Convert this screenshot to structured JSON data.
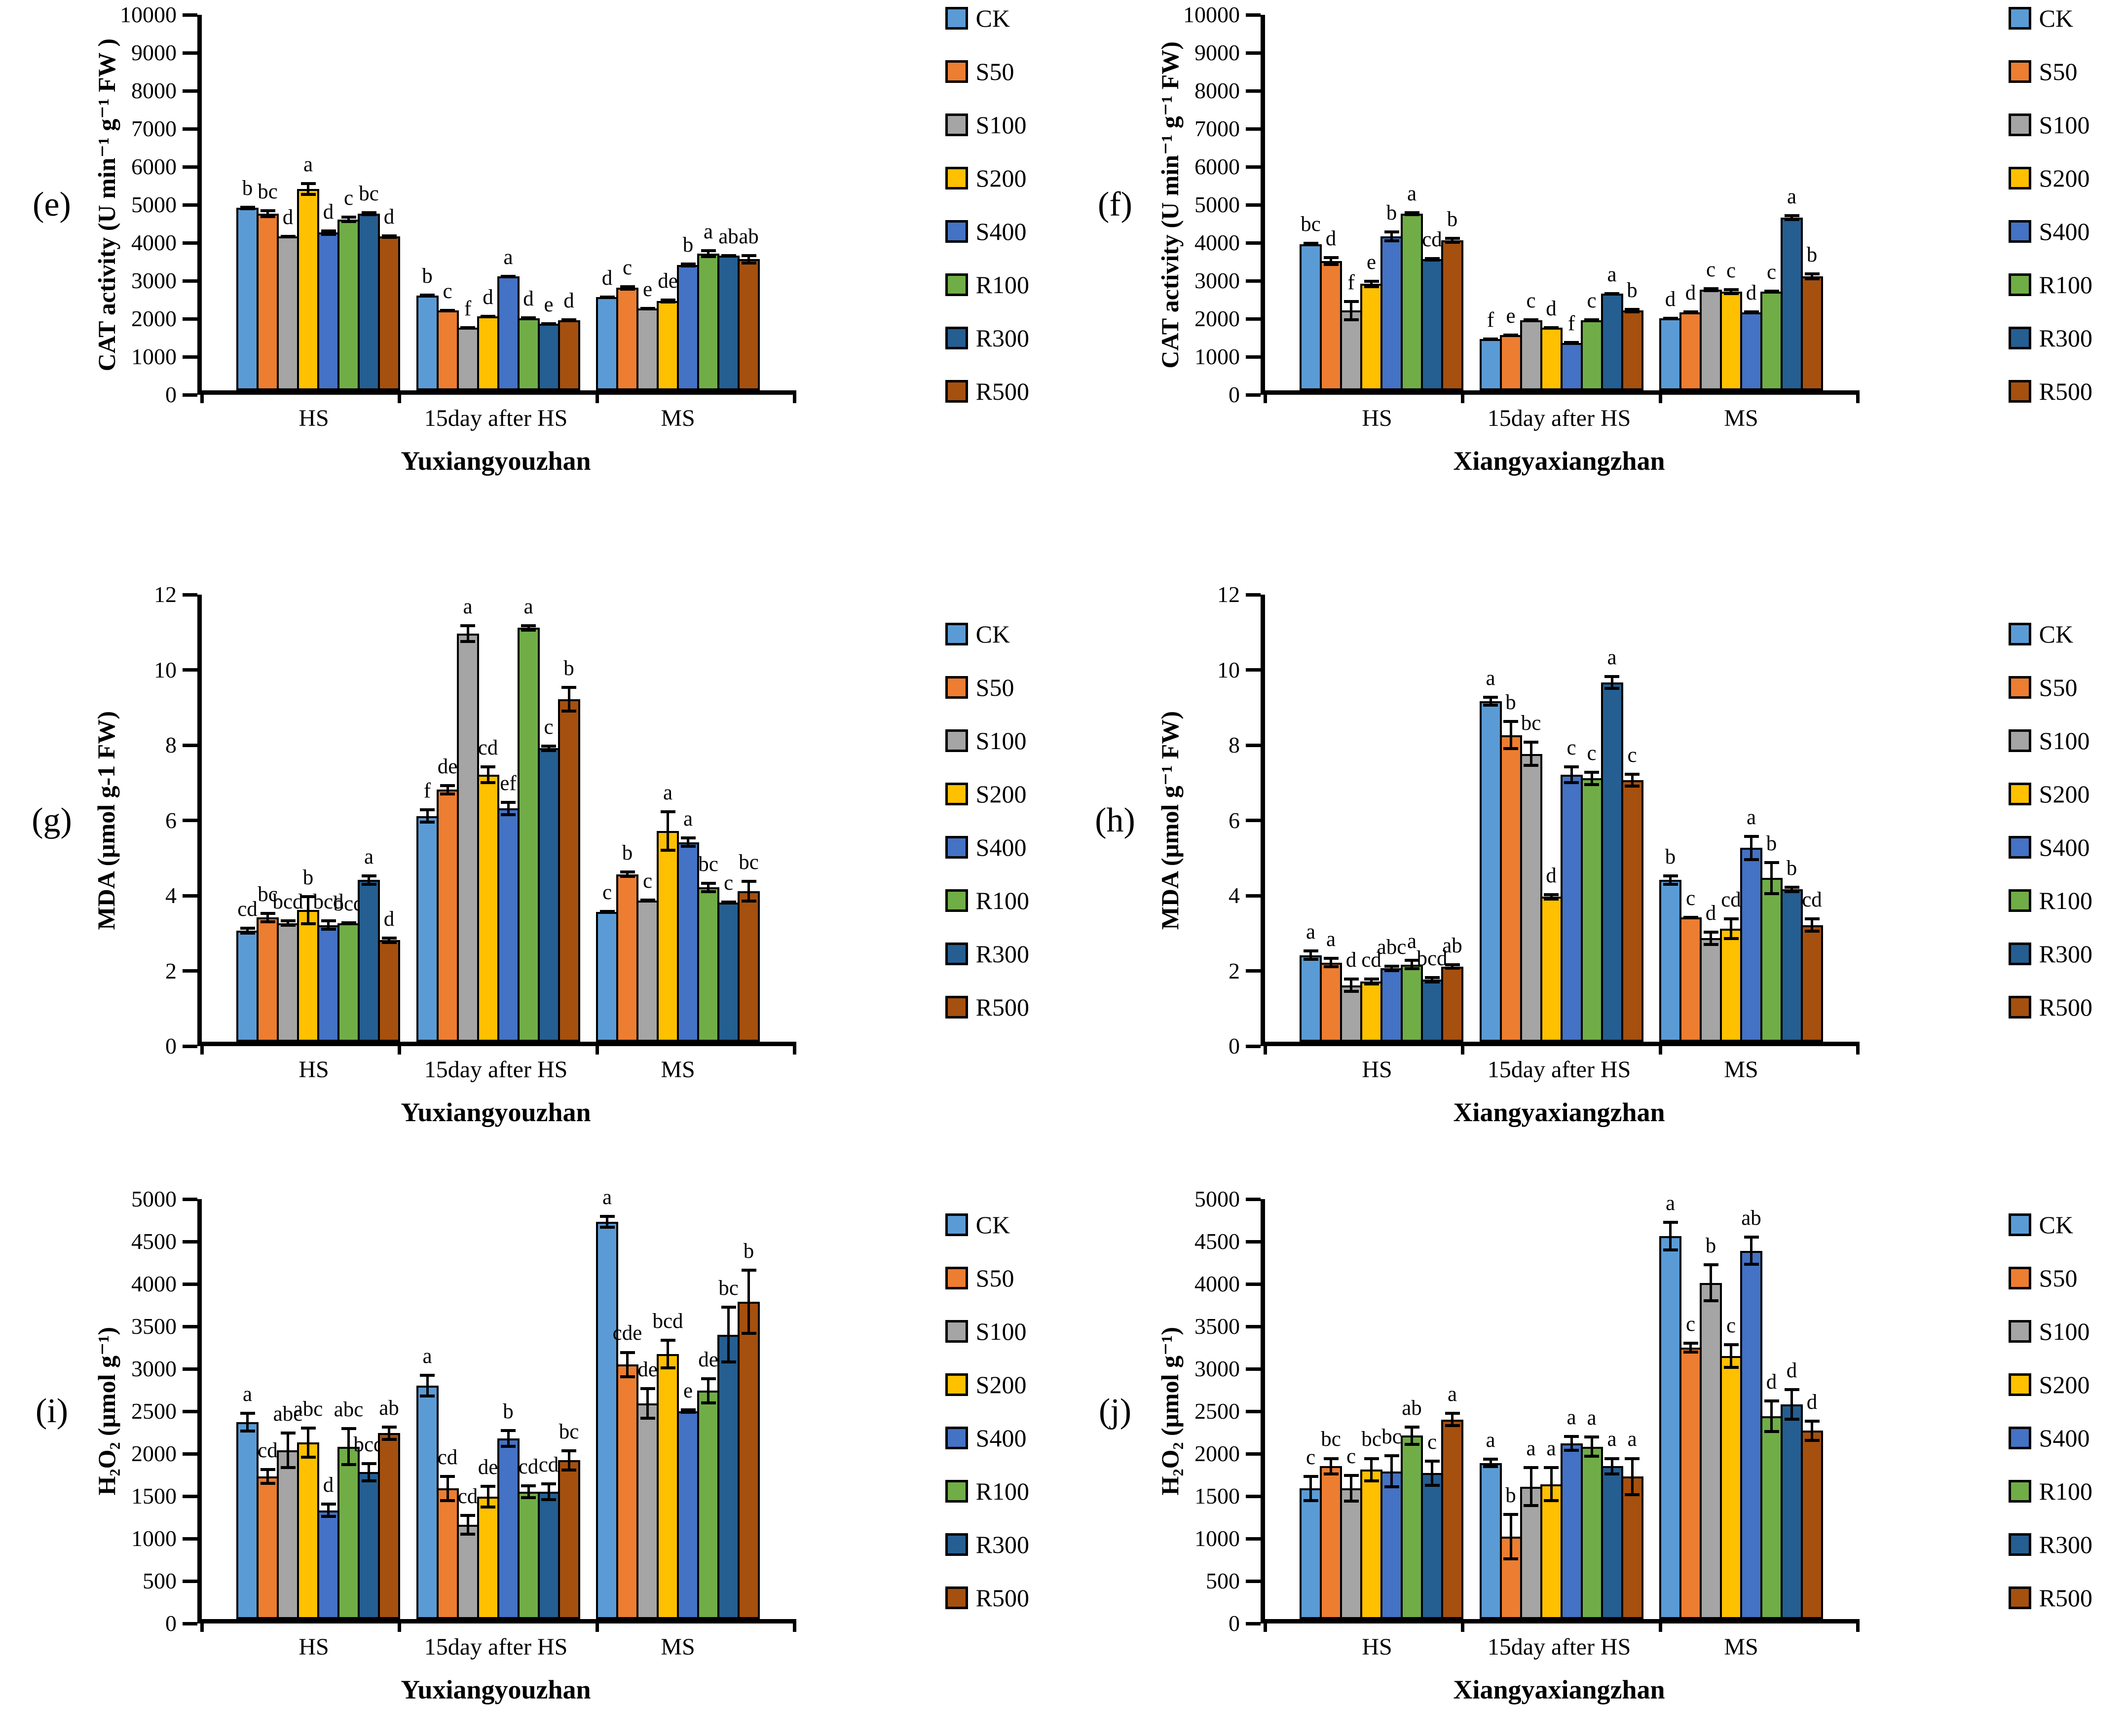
{
  "figure_background": "#FFFFFF",
  "legend_series": [
    "CK",
    "S50",
    "S100",
    "S200",
    "S400",
    "R100",
    "R300",
    "R500"
  ],
  "series_colors": {
    "CK": "#5B9BD5",
    "S50": "#ED7D31",
    "S100": "#A5A5A5",
    "S200": "#FFC000",
    "S400": "#4472C4",
    "R100": "#70AD47",
    "R300": "#255E91",
    "R500": "#A5500F"
  },
  "chart_data": [
    {
      "type": "bar",
      "panel": "(e)",
      "title": "Yuxiangyouzhan",
      "ylabel": "CAT activity (U min⁻¹ g⁻¹ FW )",
      "ylim": [
        0,
        10000
      ],
      "ytick": 1000,
      "legend_position": "right",
      "grid": false,
      "categories": [
        "HS",
        "15day after HS",
        "MS"
      ],
      "series": [
        {
          "name": "CK",
          "color": "#5B9BD5",
          "values": [
            4800,
            2500,
            2450
          ],
          "errors": [
            60,
            50,
            50
          ],
          "letters": [
            "b",
            "b",
            "d"
          ]
        },
        {
          "name": "S50",
          "color": "#ED7D31",
          "values": [
            4650,
            2100,
            2700
          ],
          "errors": [
            120,
            40,
            70
          ],
          "letters": [
            "bc",
            "c",
            "c"
          ]
        },
        {
          "name": "S100",
          "color": "#A5A5A5",
          "values": [
            4050,
            1650,
            2150
          ],
          "errors": [
            40,
            40,
            40
          ],
          "letters": [
            "d",
            "f",
            "e"
          ]
        },
        {
          "name": "S200",
          "color": "#FFC000",
          "values": [
            5300,
            1950,
            2350
          ],
          "errors": [
            180,
            40,
            60
          ],
          "letters": [
            "a",
            "d",
            "de"
          ]
        },
        {
          "name": "S400",
          "color": "#4472C4",
          "values": [
            4150,
            3000,
            3300
          ],
          "errors": [
            90,
            40,
            60
          ],
          "letters": [
            "d",
            "a",
            "b"
          ]
        },
        {
          "name": "R100",
          "color": "#70AD47",
          "values": [
            4500,
            1900,
            3600
          ],
          "errors": [
            100,
            50,
            120
          ],
          "letters": [
            "c",
            "d",
            "a"
          ]
        },
        {
          "name": "R300",
          "color": "#255E91",
          "values": [
            4650,
            1750,
            3550
          ],
          "errors": [
            60,
            40,
            40
          ],
          "letters": [
            "bc",
            "e",
            "ab"
          ]
        },
        {
          "name": "R500",
          "color": "#A5500F",
          "values": [
            4050,
            1850,
            3450
          ],
          "errors": [
            60,
            40,
            140
          ],
          "letters": [
            "d",
            "d",
            "ab"
          ]
        }
      ]
    },
    {
      "type": "bar",
      "panel": "(f)",
      "title": "Xiangyaxiangzhan",
      "ylabel": "CAT activity (U min⁻¹ g⁻¹ FW)",
      "ylim": [
        0,
        10000
      ],
      "ytick": 1000,
      "legend_position": "right",
      "grid": false,
      "categories": [
        "HS",
        "15day after HS",
        "MS"
      ],
      "series": [
        {
          "name": "CK",
          "color": "#5B9BD5",
          "values": [
            3850,
            1350,
            1900
          ],
          "errors": [
            60,
            40,
            40
          ],
          "letters": [
            "bc",
            "f",
            "d"
          ]
        },
        {
          "name": "S50",
          "color": "#ED7D31",
          "values": [
            3400,
            1450,
            2050
          ],
          "errors": [
            130,
            40,
            50
          ],
          "letters": [
            "d",
            "e",
            "d"
          ]
        },
        {
          "name": "S100",
          "color": "#A5A5A5",
          "values": [
            2100,
            1850,
            2650
          ],
          "errors": [
            280,
            50,
            70
          ],
          "letters": [
            "f",
            "c",
            "c"
          ]
        },
        {
          "name": "S200",
          "color": "#FFC000",
          "values": [
            2800,
            1650,
            2600
          ],
          "errors": [
            110,
            40,
            90
          ],
          "letters": [
            "e",
            "d",
            "c"
          ]
        },
        {
          "name": "S400",
          "color": "#4472C4",
          "values": [
            4050,
            1250,
            2050
          ],
          "errors": [
            160,
            50,
            50
          ],
          "letters": [
            "b",
            "f",
            "d"
          ]
        },
        {
          "name": "R100",
          "color": "#70AD47",
          "values": [
            4650,
            1850,
            2600
          ],
          "errors": [
            60,
            50,
            50
          ],
          "letters": [
            "a",
            "c",
            "c"
          ]
        },
        {
          "name": "R300",
          "color": "#255E91",
          "values": [
            3450,
            2550,
            4550
          ],
          "errors": [
            60,
            40,
            90
          ],
          "letters": [
            "cd",
            "a",
            "a"
          ]
        },
        {
          "name": "R500",
          "color": "#A5500F",
          "values": [
            3950,
            2100,
            3000
          ],
          "errors": [
            90,
            70,
            110
          ],
          "letters": [
            "b",
            "b",
            "b"
          ]
        }
      ]
    },
    {
      "type": "bar",
      "panel": "(g)",
      "title": "Yuxiangyouzhan",
      "ylabel": "MDA (μmol g-1 FW)",
      "ylim": [
        0,
        12
      ],
      "ytick": 2,
      "legend_position": "right",
      "grid": false,
      "categories": [
        "HS",
        "15day after HS",
        "MS"
      ],
      "series": [
        {
          "name": "CK",
          "color": "#5B9BD5",
          "values": [
            2.95,
            6.0,
            3.45
          ],
          "errors": [
            0.1,
            0.2,
            0.05
          ],
          "letters": [
            "cd",
            "f",
            "c"
          ]
        },
        {
          "name": "S50",
          "color": "#ED7D31",
          "values": [
            3.3,
            6.7,
            4.45
          ],
          "errors": [
            0.15,
            0.15,
            0.1
          ],
          "letters": [
            "bc",
            "de",
            "b"
          ]
        },
        {
          "name": "S100",
          "color": "#A5A5A5",
          "values": [
            3.15,
            10.85,
            3.75
          ],
          "errors": [
            0.1,
            0.25,
            0.05
          ],
          "letters": [
            "bcd",
            "a",
            "c"
          ]
        },
        {
          "name": "S200",
          "color": "#FFC000",
          "values": [
            3.5,
            7.1,
            5.6
          ],
          "errors": [
            0.4,
            0.25,
            0.55
          ],
          "letters": [
            "b",
            "cd",
            "a"
          ]
        },
        {
          "name": "S400",
          "color": "#4472C4",
          "values": [
            3.1,
            6.2,
            5.3
          ],
          "errors": [
            0.15,
            0.2,
            0.15
          ],
          "letters": [
            "bcd",
            "ef",
            "a"
          ]
        },
        {
          "name": "R100",
          "color": "#70AD47",
          "values": [
            3.15,
            11.0,
            4.1
          ],
          "errors": [
            0.05,
            0.1,
            0.15
          ],
          "letters": [
            "bcd",
            "a",
            "bc"
          ]
        },
        {
          "name": "R300",
          "color": "#255E91",
          "values": [
            4.3,
            7.8,
            3.7
          ],
          "errors": [
            0.15,
            0.1,
            0.05
          ],
          "letters": [
            "a",
            "c",
            "c"
          ]
        },
        {
          "name": "R500",
          "color": "#A5500F",
          "values": [
            2.7,
            9.1,
            4.0
          ],
          "errors": [
            0.1,
            0.35,
            0.3
          ],
          "letters": [
            "d",
            "b",
            "bc"
          ]
        }
      ]
    },
    {
      "type": "bar",
      "panel": "(h)",
      "title": "Xiangyaxiangzhan",
      "ylabel": "MDA (μmol g⁻¹ FW)",
      "ylim": [
        0,
        12
      ],
      "ytick": 2,
      "legend_position": "right",
      "grid": false,
      "categories": [
        "HS",
        "15day after HS",
        "MS"
      ],
      "series": [
        {
          "name": "CK",
          "color": "#5B9BD5",
          "values": [
            2.3,
            9.05,
            4.3
          ],
          "errors": [
            0.15,
            0.15,
            0.15
          ],
          "letters": [
            "a",
            "a",
            "b"
          ]
        },
        {
          "name": "S50",
          "color": "#ED7D31",
          "values": [
            2.1,
            8.15,
            3.3
          ],
          "errors": [
            0.15,
            0.4,
            0.05
          ],
          "letters": [
            "a",
            "b",
            "c"
          ]
        },
        {
          "name": "S100",
          "color": "#A5A5A5",
          "values": [
            1.5,
            7.65,
            2.75
          ],
          "errors": [
            0.2,
            0.35,
            0.2
          ],
          "letters": [
            "d",
            "bc",
            "d"
          ]
        },
        {
          "name": "S200",
          "color": "#FFC000",
          "values": [
            1.6,
            3.85,
            3.0
          ],
          "errors": [
            0.1,
            0.1,
            0.3
          ],
          "letters": [
            "cd",
            "d",
            "cd"
          ]
        },
        {
          "name": "S400",
          "color": "#4472C4",
          "values": [
            1.95,
            7.1,
            5.15
          ],
          "errors": [
            0.1,
            0.25,
            0.35
          ],
          "letters": [
            "abc",
            "c",
            "a"
          ]
        },
        {
          "name": "R100",
          "color": "#70AD47",
          "values": [
            2.05,
            7.0,
            4.35
          ],
          "errors": [
            0.15,
            0.2,
            0.45
          ],
          "letters": [
            "a",
            "c",
            "b"
          ]
        },
        {
          "name": "R300",
          "color": "#255E91",
          "values": [
            1.65,
            9.55,
            4.05
          ],
          "errors": [
            0.1,
            0.2,
            0.1
          ],
          "letters": [
            "bcd",
            "a",
            "b"
          ]
        },
        {
          "name": "R500",
          "color": "#A5500F",
          "values": [
            2.0,
            6.95,
            3.1
          ],
          "errors": [
            0.08,
            0.2,
            0.2
          ],
          "letters": [
            "ab",
            "c",
            "cd"
          ]
        }
      ]
    },
    {
      "type": "bar",
      "panel": "(i)",
      "title": "Yuxiangyouzhan",
      "ylabel": "H₂O₂ (μmol g⁻¹)",
      "ylim": [
        0,
        5000
      ],
      "ytick": 500,
      "legend_position": "right",
      "grid": false,
      "categories": [
        "HS",
        "15day after HS",
        "MS"
      ],
      "series": [
        {
          "name": "CK",
          "color": "#5B9BD5",
          "values": [
            2320,
            2750,
            4680
          ],
          "errors": [
            120,
            140,
            80
          ],
          "letters": [
            "a",
            "a",
            "a"
          ]
        },
        {
          "name": "S50",
          "color": "#ED7D31",
          "values": [
            1680,
            1540,
            3000
          ],
          "errors": [
            100,
            160,
            160
          ],
          "letters": [
            "cd",
            "cd",
            "cde"
          ]
        },
        {
          "name": "S100",
          "color": "#A5A5A5",
          "values": [
            1990,
            1110,
            2540
          ],
          "errors": [
            220,
            130,
            190
          ],
          "letters": [
            "abc",
            "cd",
            "de"
          ]
        },
        {
          "name": "S200",
          "color": "#FFC000",
          "values": [
            2080,
            1440,
            3120
          ],
          "errors": [
            190,
            140,
            180
          ],
          "letters": [
            "abc",
            "de",
            "bcd"
          ]
        },
        {
          "name": "S400",
          "color": "#4472C4",
          "values": [
            1280,
            2130,
            2450
          ],
          "errors": [
            90,
            110,
            30
          ],
          "letters": [
            "d",
            "b",
            "e"
          ]
        },
        {
          "name": "R100",
          "color": "#70AD47",
          "values": [
            2030,
            1500,
            2690
          ],
          "errors": [
            230,
            90,
            160
          ],
          "letters": [
            "abc",
            "cd",
            "de"
          ]
        },
        {
          "name": "R300",
          "color": "#255E91",
          "values": [
            1730,
            1500,
            3350
          ],
          "errors": [
            120,
            110,
            340
          ],
          "letters": [
            "bcd",
            "cd",
            "bc"
          ]
        },
        {
          "name": "R500",
          "color": "#A5500F",
          "values": [
            2190,
            1870,
            3740
          ],
          "errors": [
            90,
            130,
            390
          ],
          "letters": [
            "ab",
            "bc",
            "b"
          ]
        }
      ]
    },
    {
      "type": "bar",
      "panel": "(j)",
      "title": "Xiangyaxiangzhan",
      "ylabel": "H₂O₂ (μmol g⁻¹)",
      "ylim": [
        0,
        5000
      ],
      "ytick": 500,
      "legend_position": "right",
      "grid": false,
      "categories": [
        "HS",
        "15day after HS",
        "MS"
      ],
      "series": [
        {
          "name": "CK",
          "color": "#5B9BD5",
          "values": [
            1540,
            1840,
            4510
          ],
          "errors": [
            160,
            60,
            180
          ],
          "letters": [
            "c",
            "a",
            "a"
          ]
        },
        {
          "name": "S50",
          "color": "#ED7D31",
          "values": [
            1800,
            970,
            3200
          ],
          "errors": [
            110,
            280,
            70
          ],
          "letters": [
            "bc",
            "b",
            "c"
          ]
        },
        {
          "name": "S100",
          "color": "#A5A5A5",
          "values": [
            1540,
            1560,
            3960
          ],
          "errors": [
            170,
            240,
            230
          ],
          "letters": [
            "c",
            "a",
            "b"
          ]
        },
        {
          "name": "S200",
          "color": "#FFC000",
          "values": [
            1760,
            1590,
            3100
          ],
          "errors": [
            150,
            210,
            150
          ],
          "letters": [
            "bc",
            "a",
            "c"
          ]
        },
        {
          "name": "S400",
          "color": "#4472C4",
          "values": [
            1740,
            2070,
            4340
          ],
          "errors": [
            200,
            100,
            180
          ],
          "letters": [
            "bc",
            "a",
            "ab"
          ]
        },
        {
          "name": "R100",
          "color": "#70AD47",
          "values": [
            2160,
            2030,
            2390
          ],
          "errors": [
            120,
            130,
            200
          ],
          "letters": [
            "ab",
            "a",
            "d"
          ]
        },
        {
          "name": "R300",
          "color": "#255E91",
          "values": [
            1720,
            1800,
            2530
          ],
          "errors": [
            160,
            110,
            190
          ],
          "letters": [
            "c",
            "a",
            "d"
          ]
        },
        {
          "name": "R500",
          "color": "#A5500F",
          "values": [
            2350,
            1680,
            2220
          ],
          "errors": [
            90,
            230,
            130
          ],
          "letters": [
            "a",
            "a",
            "d"
          ]
        }
      ]
    }
  ]
}
